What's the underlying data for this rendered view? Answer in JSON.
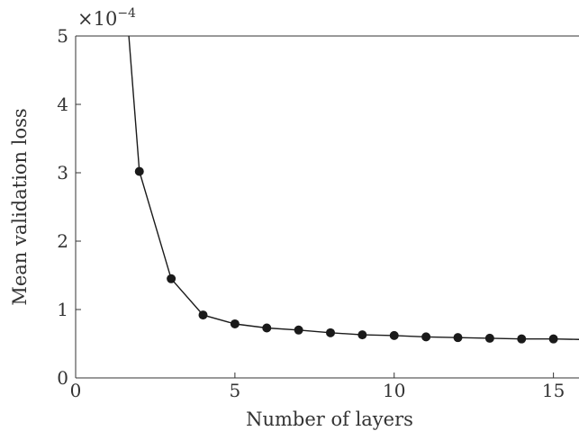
{
  "chart_data": {
    "type": "line",
    "title": "",
    "xlabel": "Number of layers",
    "ylabel": "Mean validation loss",
    "y_multiplier": "×10",
    "y_multiplier_exponent": "−4",
    "xlim": [
      0,
      16
    ],
    "ylim": [
      0,
      5
    ],
    "x_ticks": [
      "0",
      "5",
      "10",
      "15"
    ],
    "y_ticks": [
      "0",
      "1",
      "2",
      "3",
      "4",
      "5"
    ],
    "grid": false,
    "series": [
      {
        "x": [
          1,
          2,
          3,
          4,
          5,
          6,
          7,
          8,
          9,
          10,
          11,
          12,
          13,
          14,
          15,
          16
        ],
        "y": [
          9.0,
          3.02,
          1.45,
          0.92,
          0.79,
          0.73,
          0.7,
          0.66,
          0.63,
          0.62,
          0.6,
          0.59,
          0.58,
          0.57,
          0.57,
          0.56
        ],
        "markers_from_index": 1,
        "color": "#1a1a1a"
      }
    ]
  }
}
